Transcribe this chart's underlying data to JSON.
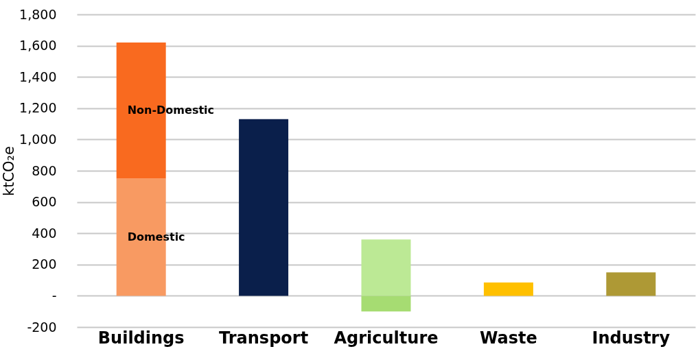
{
  "chart_data": {
    "type": "bar",
    "stacked": true,
    "ylabel": "ktCO₂e",
    "categories": [
      "Buildings",
      "Transport",
      "Agriculture",
      "Waste",
      "Industry"
    ],
    "series": [
      {
        "values": [
          750,
          1130,
          360,
          85,
          150
        ],
        "colors": [
          "#f89a62",
          "#0a1f4b",
          "#bce995",
          "#ffc000",
          "#ae9935"
        ]
      },
      {
        "values": [
          870,
          null,
          -100,
          null,
          null
        ],
        "colors": [
          "#f96a1f",
          null,
          "#a6dc72",
          null,
          null
        ]
      }
    ],
    "ylim": [
      -200,
      1800
    ],
    "yticks": [
      {
        "value": -200,
        "label": "-200"
      },
      {
        "value": 0,
        "label": "-"
      },
      {
        "value": 200,
        "label": "200"
      },
      {
        "value": 400,
        "label": "400"
      },
      {
        "value": 600,
        "label": "600"
      },
      {
        "value": 800,
        "label": "800"
      },
      {
        "value": 1000,
        "label": "1,000"
      },
      {
        "value": 1200,
        "label": "1,200"
      },
      {
        "value": 1400,
        "label": "1,400"
      },
      {
        "value": 1600,
        "label": "1,600"
      },
      {
        "value": 1800,
        "label": "1,800"
      }
    ],
    "grid": "y",
    "annotations": [
      "Non-Domestic",
      "Domestic"
    ]
  }
}
